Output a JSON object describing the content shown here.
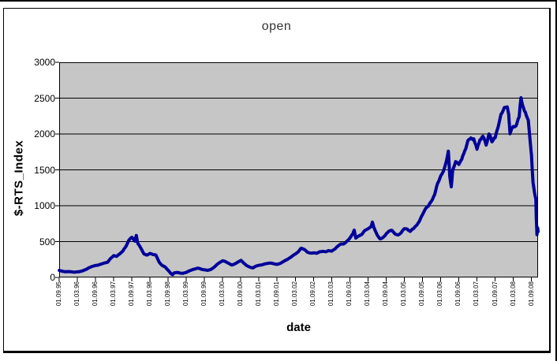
{
  "chart": {
    "title": "open",
    "x_axis_title": "date",
    "y_axis_title": "$-RTS_Index"
  },
  "chart_data": {
    "type": "line",
    "title": "open",
    "xlabel": "date",
    "ylabel": "$-RTS_Index",
    "legend": "none",
    "grid": "horizontal-black-on-gray",
    "ylim": [
      0,
      3000
    ],
    "xlim_years": [
      1995.667,
      2008.85
    ],
    "y_tick_labels": [
      "0",
      "500",
      "1000",
      "1500",
      "2000",
      "2500",
      "3000"
    ],
    "x_tick_labels": [
      "01.09.95",
      "01.03.96",
      "01.09.96",
      "01.03.97",
      "01.09.97",
      "01.03.98",
      "01.09.98",
      "01.03.99",
      "01.09.99",
      "01.03.00",
      "01.09.00",
      "01.03.01",
      "01.09.01",
      "01.03.02",
      "01.09.02",
      "01.03.03",
      "01.09.03",
      "01.03.04",
      "01.09.04",
      "01.03.05",
      "01.09.05",
      "01.03.06",
      "01.09.06",
      "01.03.07",
      "01.09.07",
      "01.03.08",
      "01.09.08"
    ],
    "colors": {
      "series": "#000099",
      "plot_background": "#c6c6c6",
      "gridline": "#000000",
      "frame": "#000000",
      "title_text": "#333333"
    },
    "series": [
      {
        "name": "open",
        "points": [
          [
            1995.67,
            100
          ],
          [
            1995.75,
            88
          ],
          [
            1995.83,
            78
          ],
          [
            1995.92,
            82
          ],
          [
            1996.0,
            80
          ],
          [
            1996.08,
            72
          ],
          [
            1996.17,
            76
          ],
          [
            1996.25,
            84
          ],
          [
            1996.33,
            92
          ],
          [
            1996.42,
            112
          ],
          [
            1996.5,
            135
          ],
          [
            1996.58,
            150
          ],
          [
            1996.67,
            162
          ],
          [
            1996.75,
            168
          ],
          [
            1996.83,
            182
          ],
          [
            1996.92,
            196
          ],
          [
            1997.0,
            205
          ],
          [
            1997.08,
            258
          ],
          [
            1997.17,
            302
          ],
          [
            1997.25,
            292
          ],
          [
            1997.33,
            322
          ],
          [
            1997.42,
            362
          ],
          [
            1997.5,
            420
          ],
          [
            1997.58,
            505
          ],
          [
            1997.67,
            550
          ],
          [
            1997.75,
            495
          ],
          [
            1997.79,
            570
          ],
          [
            1997.83,
            465
          ],
          [
            1997.92,
            395
          ],
          [
            1998.0,
            318
          ],
          [
            1998.08,
            302
          ],
          [
            1998.17,
            328
          ],
          [
            1998.25,
            312
          ],
          [
            1998.33,
            305
          ],
          [
            1998.42,
            205
          ],
          [
            1998.5,
            162
          ],
          [
            1998.58,
            142
          ],
          [
            1998.67,
            95
          ],
          [
            1998.75,
            52
          ],
          [
            1998.79,
            40
          ],
          [
            1998.83,
            62
          ],
          [
            1998.92,
            72
          ],
          [
            1999.0,
            60
          ],
          [
            1999.08,
            57
          ],
          [
            1999.17,
            72
          ],
          [
            1999.25,
            88
          ],
          [
            1999.33,
            106
          ],
          [
            1999.42,
            116
          ],
          [
            1999.5,
            126
          ],
          [
            1999.58,
            112
          ],
          [
            1999.67,
            102
          ],
          [
            1999.75,
            96
          ],
          [
            1999.83,
            106
          ],
          [
            1999.92,
            132
          ],
          [
            2000.0,
            172
          ],
          [
            2000.08,
            202
          ],
          [
            2000.17,
            232
          ],
          [
            2000.25,
            218
          ],
          [
            2000.33,
            198
          ],
          [
            2000.42,
            172
          ],
          [
            2000.5,
            186
          ],
          [
            2000.58,
            212
          ],
          [
            2000.67,
            238
          ],
          [
            2000.75,
            198
          ],
          [
            2000.83,
            168
          ],
          [
            2000.92,
            146
          ],
          [
            2001.0,
            136
          ],
          [
            2001.08,
            162
          ],
          [
            2001.17,
            172
          ],
          [
            2001.25,
            176
          ],
          [
            2001.33,
            192
          ],
          [
            2001.42,
            202
          ],
          [
            2001.5,
            200
          ],
          [
            2001.58,
            192
          ],
          [
            2001.67,
            182
          ],
          [
            2001.75,
            196
          ],
          [
            2001.83,
            216
          ],
          [
            2001.92,
            242
          ],
          [
            2002.0,
            266
          ],
          [
            2002.08,
            292
          ],
          [
            2002.17,
            322
          ],
          [
            2002.25,
            352
          ],
          [
            2002.33,
            398
          ],
          [
            2002.42,
            378
          ],
          [
            2002.5,
            342
          ],
          [
            2002.58,
            330
          ],
          [
            2002.67,
            336
          ],
          [
            2002.75,
            330
          ],
          [
            2002.83,
            350
          ],
          [
            2002.92,
            358
          ],
          [
            2003.0,
            360
          ],
          [
            2003.08,
            372
          ],
          [
            2003.17,
            362
          ],
          [
            2003.25,
            392
          ],
          [
            2003.33,
            432
          ],
          [
            2003.42,
            468
          ],
          [
            2003.5,
            462
          ],
          [
            2003.58,
            492
          ],
          [
            2003.67,
            542
          ],
          [
            2003.75,
            592
          ],
          [
            2003.79,
            642
          ],
          [
            2003.83,
            532
          ],
          [
            2003.92,
            562
          ],
          [
            2004.0,
            582
          ],
          [
            2004.08,
            642
          ],
          [
            2004.17,
            682
          ],
          [
            2004.25,
            722
          ],
          [
            2004.29,
            778
          ],
          [
            2004.33,
            702
          ],
          [
            2004.42,
            602
          ],
          [
            2004.5,
            552
          ],
          [
            2004.58,
            572
          ],
          [
            2004.67,
            622
          ],
          [
            2004.75,
            668
          ],
          [
            2004.83,
            678
          ],
          [
            2004.92,
            622
          ],
          [
            2005.0,
            612
          ],
          [
            2005.08,
            642
          ],
          [
            2005.17,
            698
          ],
          [
            2005.25,
            688
          ],
          [
            2005.33,
            662
          ],
          [
            2005.42,
            692
          ],
          [
            2005.5,
            732
          ],
          [
            2005.58,
            792
          ],
          [
            2005.67,
            882
          ],
          [
            2005.75,
            982
          ],
          [
            2005.83,
            1012
          ],
          [
            2005.92,
            1082
          ],
          [
            2006.0,
            1152
          ],
          [
            2006.08,
            1292
          ],
          [
            2006.17,
            1402
          ],
          [
            2006.25,
            1482
          ],
          [
            2006.33,
            1622
          ],
          [
            2006.38,
            1752
          ],
          [
            2006.42,
            1402
          ],
          [
            2006.46,
            1252
          ],
          [
            2006.5,
            1482
          ],
          [
            2006.58,
            1582
          ],
          [
            2006.67,
            1562
          ],
          [
            2006.75,
            1602
          ],
          [
            2006.83,
            1722
          ],
          [
            2006.92,
            1852
          ],
          [
            2007.0,
            1902
          ],
          [
            2007.08,
            1882
          ],
          [
            2007.17,
            1762
          ],
          [
            2007.25,
            1902
          ],
          [
            2007.33,
            1942
          ],
          [
            2007.42,
            1822
          ],
          [
            2007.5,
            1992
          ],
          [
            2007.58,
            1882
          ],
          [
            2007.67,
            1932
          ],
          [
            2007.75,
            2092
          ],
          [
            2007.83,
            2222
          ],
          [
            2007.92,
            2292
          ],
          [
            2008.0,
            2302
          ],
          [
            2008.04,
            2232
          ],
          [
            2008.08,
            1962
          ],
          [
            2008.17,
            2062
          ],
          [
            2008.25,
            2052
          ],
          [
            2008.33,
            2202
          ],
          [
            2008.38,
            2462
          ],
          [
            2008.42,
            2402
          ],
          [
            2008.5,
            2292
          ],
          [
            2008.58,
            2182
          ],
          [
            2008.67,
            1682
          ],
          [
            2008.71,
            1332
          ],
          [
            2008.75,
            1202
          ],
          [
            2008.79,
            1102
          ],
          [
            2008.8,
            850
          ],
          [
            2008.82,
            602
          ],
          [
            2008.84,
            690
          ],
          [
            2008.85,
            640
          ]
        ]
      }
    ]
  }
}
